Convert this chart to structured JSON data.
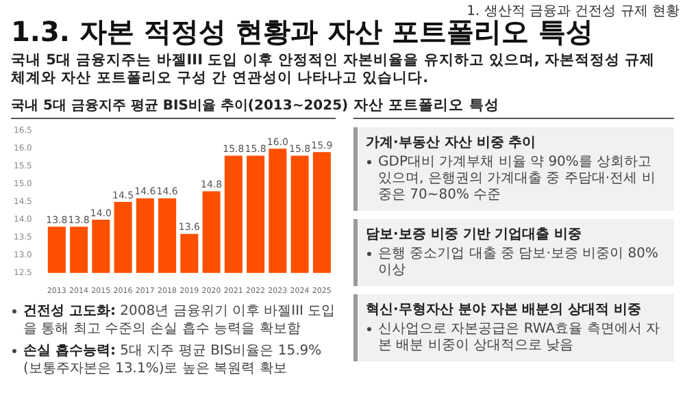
{
  "chart_data": {
    "type": "bar",
    "title": "국내 5대 금융지주 평균 BIS비율 추이(2013~2025)",
    "categories": [
      "2013",
      "2014",
      "2015",
      "2016",
      "2017",
      "2018",
      "2019",
      "2020",
      "2021",
      "2022",
      "2023",
      "2024",
      "2025"
    ],
    "values": [
      13.8,
      13.8,
      14.0,
      14.5,
      14.6,
      14.6,
      13.6,
      14.8,
      15.8,
      15.8,
      16.0,
      15.8,
      15.9
    ],
    "value_labels": [
      "13.8",
      "13.8",
      "14.0",
      "14.5",
      "14.6",
      "14.6",
      "13.6",
      "14.8",
      "15.8",
      "15.8",
      "16.0",
      "15.8",
      "15.9"
    ],
    "color": "#fc5000",
    "ylim": [
      12.5,
      16.5
    ],
    "yticks": [
      12.5,
      {
        "value": 13,
        "label": "13.0"
      },
      13.5,
      {
        "value": 14,
        "label": "14.0"
      },
      14.5,
      {
        "value": 15,
        "label": "15.0"
      },
      15.5,
      {
        "value": 16,
        "label": "16.0"
      },
      16.5
    ],
    "grid": false,
    "annotations": [
      "1. 생산적 금융과 건전성 규제 현황",
      "1.3. 자본 적정성 현황과 자산 포트폴리오 특성",
      "국내 5대 금융지주는 바젤III 도입 이후 안정적인 자본비율을 유지하고 있으며, 자본적정성 규제 체계와 자산 포트폴리오 구성 간 연관성이 나타나고 있습니다.",
      "건전성 고도화:",
      "2008년 금융위기 이후 바젤III 도입을 통해 최고 수준의 손실 흡수 능력을 확보함",
      "손실 흡수능력:",
      "5대 지주 평균 BIS비율은 15.9%(보통주자본은 13.1%)로 높은 복원력 확보",
      "자산 포트폴리오 특성",
      "가계·부동산 자산 비중 추이",
      "GDP대비 가계부채 비율 약 90%를 상회하고 있으며, 은행권의 가계대출 중 주담대·전세 비중은 70~80% 수준",
      "담보·보증 비중 기반 기업대출 비중",
      "은행 중소기업 대출 중 담보·보증 비중이 80%이상",
      "혁신·무형자산 분야 자본 배분의 상대적 비중",
      "신사업으로 자본공급은 RWA효율 측면에서 자본 배분 비중이 상대적으로 낮음"
    ]
  }
}
